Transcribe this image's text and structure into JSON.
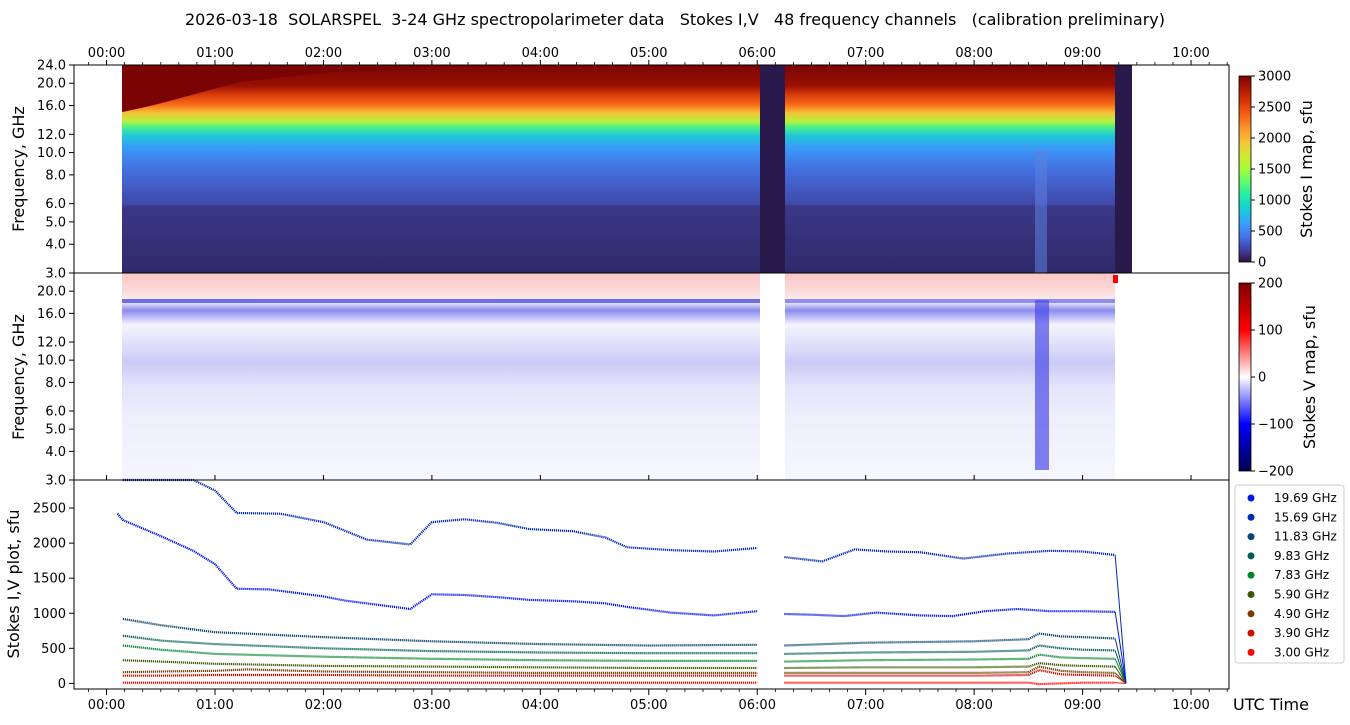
{
  "chart_data": [
    {
      "panel": "stokes-i-map",
      "type": "heatmap",
      "title": "2026-03-18  SOLARSPEL  3-24 GHz spectropolarimeter data   Stokes I,V   48 frequency channels   (calibration preliminary)",
      "ylabel": "Frequency, GHz",
      "xlabel_top_ticks": [
        "00:00",
        "01:00",
        "02:00",
        "03:00",
        "04:00",
        "05:00",
        "06:00",
        "07:00",
        "08:00",
        "09:00",
        "10:00"
      ],
      "yticks": [
        "3.0",
        "4.0",
        "5.0",
        "6.0",
        "8.0",
        "10.0",
        "12.0",
        "16.0",
        "20.0",
        "24.0"
      ],
      "ytick_values": [
        3,
        4,
        5,
        6,
        8,
        10,
        12,
        16,
        20,
        24
      ],
      "ylim": [
        3,
        24
      ],
      "xlim_hours": [
        -0.3,
        10.35
      ],
      "colorbar": {
        "label": "Stokes I map, sfu",
        "range": [
          0,
          3000
        ],
        "ticks": [
          "0",
          "500",
          "1000",
          "1500",
          "2000",
          "2500",
          "3000"
        ],
        "colormap": "turbo"
      },
      "data_span_hours": [
        0.1,
        9.43
      ],
      "gap_hours": [
        6.0,
        6.22
      ],
      "notes": "Saturated (>3000 sfu) above ~16-20 GHz, ~1500 sfu near 16 GHz, ~500 sfu 6-12 GHz, ~100 sfu below 6 GHz"
    },
    {
      "panel": "stokes-v-map",
      "type": "heatmap",
      "ylabel": "Frequency, GHz",
      "yticks": [
        "3.0",
        "4.0",
        "5.0",
        "6.0",
        "8.0",
        "10.0",
        "12.0",
        "16.0",
        "20.0"
      ],
      "ytick_values": [
        3,
        4,
        5,
        6,
        8,
        10,
        12,
        16,
        20
      ],
      "ylim": [
        3,
        24
      ],
      "colorbar": {
        "label": "Stokes V map, sfu",
        "range": [
          -200,
          200
        ],
        "ticks": [
          "200",
          "100",
          "0",
          "−100",
          "−200"
        ],
        "colormap": "seismic"
      },
      "features": "faint positive above 20 GHz, negative band near 17.5 GHz, negative band 10-12 GHz, negative burst near 08:35 UTC"
    },
    {
      "panel": "stokes-iv-plot",
      "type": "scatter",
      "ylabel": "Stokes I,V plot, sfu",
      "xlabel": "UTC Time",
      "xticks": [
        "00:00",
        "01:00",
        "02:00",
        "03:00",
        "04:00",
        "05:00",
        "06:00",
        "07:00",
        "08:00",
        "09:00",
        "10:00"
      ],
      "yticks": [
        "0",
        "500",
        "1000",
        "1500",
        "2000",
        "2500"
      ],
      "ytick_values": [
        0,
        500,
        1000,
        1500,
        2000,
        2500
      ],
      "ylim": [
        -80,
        2900
      ],
      "legend_position": "right",
      "series": [
        {
          "name": "19.69 GHz",
          "color": "#0016e6",
          "x": [
            0.1,
            0.15,
            0.5,
            0.8,
            1.0,
            1.2,
            1.5,
            2.0,
            2.2,
            2.5,
            2.8,
            3.0,
            3.3,
            3.6,
            3.9,
            4.3,
            4.6,
            4.8,
            5.2,
            5.6,
            6.0,
            6.25,
            6.5,
            6.8,
            7.1,
            7.5,
            7.8,
            8.1,
            8.4,
            8.7,
            9.0,
            9.3
          ],
          "values": [
            2420,
            2330,
            2100,
            1890,
            1700,
            1350,
            1340,
            1240,
            1180,
            1120,
            1060,
            1270,
            1260,
            1230,
            1190,
            1170,
            1140,
            1090,
            1010,
            970,
            1030,
            990,
            980,
            960,
            1010,
            970,
            960,
            1030,
            1060,
            1030,
            1030,
            1020
          ]
        },
        {
          "name": "15.69 GHz",
          "color": "#0028b8",
          "x": [
            0.15,
            0.5,
            0.8,
            1.0,
            1.2,
            1.6,
            2.0,
            2.4,
            2.8,
            3.0,
            3.3,
            3.6,
            3.9,
            4.3,
            4.6,
            4.8,
            5.2,
            5.6,
            6.0,
            6.25,
            6.6,
            6.9,
            7.2,
            7.5,
            7.9,
            8.3,
            8.7,
            9.0,
            9.3
          ],
          "values": [
            3100,
            3000,
            2900,
            2750,
            2430,
            2420,
            2300,
            2050,
            1980,
            2300,
            2340,
            2290,
            2200,
            2170,
            2080,
            1940,
            1900,
            1880,
            1930,
            1800,
            1740,
            1910,
            1880,
            1870,
            1780,
            1850,
            1890,
            1880,
            1830
          ]
        },
        {
          "name": "11.83 GHz",
          "color": "#0c4472",
          "x": [
            0.15,
            0.5,
            1.0,
            2.0,
            3.0,
            4.0,
            5.0,
            6.0,
            6.25,
            7.0,
            8.0,
            8.5,
            8.6,
            8.8,
            9.0,
            9.3
          ],
          "values": [
            920,
            830,
            730,
            660,
            600,
            560,
            540,
            550,
            540,
            580,
            600,
            630,
            710,
            670,
            660,
            640
          ]
        },
        {
          "name": "9.83 GHz",
          "color": "#005e50",
          "x": [
            0.15,
            0.5,
            1.0,
            2.0,
            3.0,
            4.0,
            5.0,
            6.0,
            6.25,
            7.0,
            8.0,
            8.5,
            8.6,
            8.8,
            9.0,
            9.3
          ],
          "values": [
            680,
            610,
            560,
            500,
            460,
            440,
            430,
            430,
            420,
            440,
            450,
            470,
            540,
            500,
            480,
            470
          ]
        },
        {
          "name": "7.83 GHz",
          "color": "#00842a",
          "x": [
            0.15,
            0.5,
            1.0,
            2.0,
            3.0,
            4.0,
            5.0,
            6.0,
            6.25,
            7.0,
            8.0,
            8.5,
            8.6,
            8.8,
            9.0,
            9.3
          ],
          "values": [
            540,
            480,
            420,
            380,
            350,
            330,
            320,
            320,
            310,
            330,
            340,
            350,
            410,
            370,
            360,
            350
          ]
        },
        {
          "name": "5.90 GHz",
          "color": "#3a5a00",
          "x": [
            0.15,
            0.5,
            1.0,
            2.0,
            3.0,
            4.0,
            5.0,
            6.0,
            6.25,
            7.0,
            8.0,
            8.5,
            8.6,
            8.8,
            9.0,
            9.3
          ],
          "values": [
            330,
            310,
            280,
            250,
            240,
            230,
            220,
            220,
            220,
            230,
            230,
            240,
            290,
            260,
            250,
            240
          ]
        },
        {
          "name": "4.90 GHz",
          "color": "#7a3c00",
          "x": [
            0.15,
            0.5,
            1.0,
            1.3,
            2.0,
            3.0,
            4.0,
            5.0,
            6.0,
            6.25,
            7.0,
            8.0,
            8.5,
            8.6,
            8.8,
            9.0,
            9.3
          ],
          "values": [
            160,
            170,
            180,
            200,
            170,
            160,
            150,
            150,
            150,
            150,
            150,
            150,
            160,
            240,
            180,
            160,
            150
          ]
        },
        {
          "name": "3.90 GHz",
          "color": "#c81000",
          "x": [
            0.15,
            0.5,
            1.0,
            2.0,
            3.0,
            4.0,
            5.0,
            6.0,
            6.25,
            7.0,
            8.0,
            8.5,
            8.6,
            8.8,
            9.0,
            9.3
          ],
          "values": [
            110,
            110,
            120,
            120,
            110,
            110,
            110,
            110,
            110,
            110,
            110,
            120,
            190,
            130,
            120,
            110
          ]
        },
        {
          "name": "3.00 GHz",
          "color": "#ff0000",
          "x": [
            0.15,
            1.0,
            2.0,
            3.0,
            4.0,
            5.0,
            6.0,
            6.25,
            7.0,
            8.0,
            8.5,
            8.6,
            9.0,
            9.3
          ],
          "values": [
            10,
            10,
            10,
            10,
            10,
            10,
            10,
            10,
            10,
            10,
            10,
            -10,
            10,
            10
          ]
        }
      ]
    }
  ]
}
